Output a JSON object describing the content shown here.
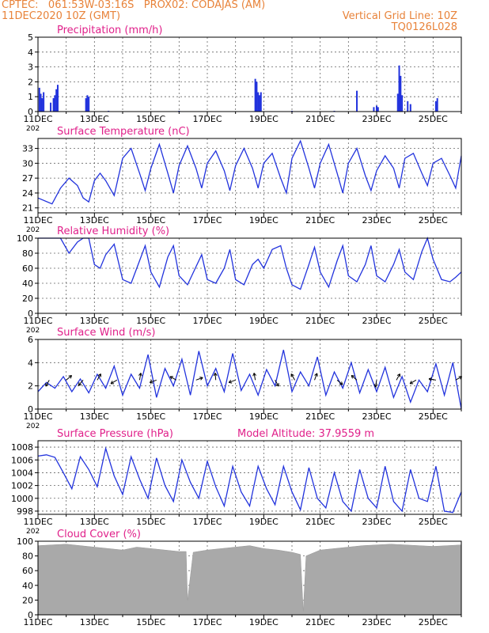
{
  "header": {
    "line1_left": "CPTEC:   061:53W-03:16S   PROX02: CODAJAS (AM)",
    "line2_left": "11DEC2020 10Z (GMT)",
    "line2_right": "Vertical Grid Line: 10Z",
    "line3_right": "TQ0126L028"
  },
  "colors": {
    "header": "#e8833a",
    "title": "#e0208a",
    "line": "#2233dd",
    "cloud": "#a9a9a9"
  },
  "x_ticks": [
    "11DEC",
    "13DEC",
    "15DEC",
    "17DEC",
    "19DEC",
    "21DEC",
    "23DEC",
    "25DEC"
  ],
  "x_corner_label": "202",
  "chart_data": [
    {
      "type": "bar",
      "title": "Precipitation (mm/h)",
      "ylim": [
        0,
        5
      ],
      "yticks": [
        0,
        1,
        2,
        3,
        4,
        5
      ],
      "grid": true,
      "bars": [
        {
          "x": 0.05,
          "y": 1.6
        },
        {
          "x": 0.1,
          "y": 1.2
        },
        {
          "x": 0.15,
          "y": 0.9
        },
        {
          "x": 0.2,
          "y": 1.3
        },
        {
          "x": 0.45,
          "y": 0.6
        },
        {
          "x": 0.55,
          "y": 0.9
        },
        {
          "x": 0.6,
          "y": 1.1
        },
        {
          "x": 0.65,
          "y": 1.5
        },
        {
          "x": 0.7,
          "y": 1.8
        },
        {
          "x": 1.7,
          "y": 0.9
        },
        {
          "x": 1.75,
          "y": 1.1
        },
        {
          "x": 1.8,
          "y": 1.0
        },
        {
          "x": 7.7,
          "y": 2.2
        },
        {
          "x": 7.75,
          "y": 2.0
        },
        {
          "x": 7.8,
          "y": 1.3
        },
        {
          "x": 7.85,
          "y": 1.1
        },
        {
          "x": 7.9,
          "y": 1.3
        },
        {
          "x": 11.3,
          "y": 1.4
        },
        {
          "x": 11.9,
          "y": 0.3
        },
        {
          "x": 12.0,
          "y": 0.4
        },
        {
          "x": 12.05,
          "y": 0.3
        },
        {
          "x": 12.75,
          "y": 1.2
        },
        {
          "x": 12.8,
          "y": 3.1
        },
        {
          "x": 12.85,
          "y": 2.4
        },
        {
          "x": 12.9,
          "y": 1.1
        },
        {
          "x": 13.1,
          "y": 0.7
        },
        {
          "x": 13.2,
          "y": 0.5
        },
        {
          "x": 14.1,
          "y": 0.7
        },
        {
          "x": 14.15,
          "y": 0.9
        },
        {
          "x": 2.5,
          "y": 0.05
        },
        {
          "x": 5.0,
          "y": 0.05
        },
        {
          "x": 9.0,
          "y": 0.05
        },
        {
          "x": 10.5,
          "y": 0.05
        }
      ]
    },
    {
      "type": "line",
      "title": "Surface Temperature (nC)",
      "ylim": [
        20,
        35
      ],
      "yticks": [
        21,
        24,
        27,
        30,
        33
      ],
      "grid": true,
      "x": [
        0,
        0.5,
        0.8,
        1.1,
        1.4,
        1.6,
        1.8,
        2.0,
        2.2,
        2.4,
        2.7,
        3.0,
        3.3,
        3.6,
        3.8,
        4.0,
        4.3,
        4.6,
        4.8,
        5.0,
        5.3,
        5.6,
        5.8,
        6.0,
        6.3,
        6.6,
        6.8,
        7.0,
        7.3,
        7.6,
        7.8,
        8.0,
        8.3,
        8.6,
        8.8,
        9.0,
        9.3,
        9.6,
        9.8,
        10.0,
        10.3,
        10.6,
        10.8,
        11.0,
        11.3,
        11.6,
        11.8,
        12.0,
        12.3,
        12.6,
        12.8,
        13.0,
        13.3,
        13.6,
        13.8,
        14.0,
        14.3,
        14.6,
        14.8,
        15.0
      ],
      "y": [
        23.0,
        21.8,
        25.0,
        27.0,
        25.5,
        23.0,
        22.2,
        26.5,
        28.0,
        26.5,
        23.5,
        31.0,
        33.0,
        28.0,
        24.5,
        29.0,
        33.8,
        28.0,
        24.0,
        29.5,
        33.5,
        29.0,
        25.0,
        30.0,
        32.5,
        28.5,
        24.5,
        29.5,
        33.0,
        29.0,
        25.0,
        30.0,
        32.0,
        27.0,
        24.0,
        31.0,
        34.5,
        29.0,
        25.0,
        30.0,
        33.8,
        28.0,
        24.0,
        30.0,
        33.0,
        27.5,
        24.5,
        28.5,
        31.5,
        29.0,
        25.0,
        31.0,
        32.0,
        28.0,
        25.5,
        30.0,
        31.0,
        27.5,
        25.0,
        31.5
      ]
    },
    {
      "type": "line",
      "title": "Relative Humidity (%)",
      "ylim": [
        0,
        100
      ],
      "yticks": [
        0,
        20,
        40,
        60,
        80,
        100
      ],
      "grid": true,
      "x": [
        0,
        0.5,
        0.8,
        1.1,
        1.4,
        1.6,
        1.8,
        2.0,
        2.2,
        2.4,
        2.7,
        3.0,
        3.3,
        3.6,
        3.8,
        4.0,
        4.3,
        4.6,
        4.8,
        5.0,
        5.3,
        5.6,
        5.8,
        6.0,
        6.3,
        6.6,
        6.8,
        7.0,
        7.3,
        7.6,
        7.8,
        8.0,
        8.3,
        8.6,
        8.8,
        9.0,
        9.3,
        9.6,
        9.8,
        10.0,
        10.3,
        10.6,
        10.8,
        11.0,
        11.3,
        11.6,
        11.8,
        12.0,
        12.3,
        12.6,
        12.8,
        13.0,
        13.3,
        13.6,
        13.8,
        14.0,
        14.3,
        14.6,
        14.8,
        15.0
      ],
      "y": [
        100,
        100,
        100,
        80,
        95,
        100,
        100,
        65,
        60,
        78,
        92,
        45,
        40,
        70,
        90,
        55,
        35,
        75,
        90,
        50,
        38,
        62,
        78,
        45,
        40,
        60,
        85,
        45,
        38,
        65,
        72,
        60,
        85,
        90,
        60,
        38,
        32,
        65,
        88,
        55,
        35,
        70,
        90,
        50,
        42,
        65,
        90,
        50,
        42,
        65,
        85,
        55,
        45,
        82,
        100,
        72,
        45,
        42,
        48,
        55
      ]
    },
    {
      "type": "line",
      "title": "Surface Wind (m/s)",
      "ylim": [
        0,
        6
      ],
      "yticks": [
        0,
        2,
        4,
        6
      ],
      "grid": true,
      "x": [
        0,
        0.3,
        0.6,
        0.9,
        1.2,
        1.5,
        1.8,
        2.1,
        2.4,
        2.7,
        3.0,
        3.3,
        3.6,
        3.9,
        4.2,
        4.5,
        4.8,
        5.1,
        5.4,
        5.7,
        6.0,
        6.3,
        6.6,
        6.9,
        7.2,
        7.5,
        7.8,
        8.1,
        8.4,
        8.7,
        9.0,
        9.3,
        9.6,
        9.9,
        10.2,
        10.5,
        10.8,
        11.1,
        11.4,
        11.7,
        12.0,
        12.3,
        12.6,
        12.9,
        13.2,
        13.5,
        13.8,
        14.1,
        14.4,
        14.7,
        15.0
      ],
      "y": [
        1.5,
        2.3,
        1.8,
        2.8,
        1.5,
        2.6,
        1.4,
        3.0,
        1.8,
        3.7,
        1.2,
        3.0,
        1.8,
        4.7,
        1.0,
        3.5,
        2.0,
        4.3,
        1.2,
        5.0,
        2.0,
        3.5,
        1.5,
        4.8,
        1.6,
        3.0,
        1.2,
        3.4,
        2.0,
        5.1,
        1.5,
        3.2,
        2.0,
        4.5,
        1.2,
        3.2,
        1.8,
        4.0,
        1.4,
        3.4,
        1.5,
        3.6,
        1.0,
        2.8,
        0.6,
        2.5,
        1.5,
        3.9,
        1.2,
        4.0,
        0.0
      ],
      "barbs": [
        {
          "x": 0.4,
          "angle": -120
        },
        {
          "x": 1.0,
          "angle": 40
        },
        {
          "x": 1.6,
          "angle": -130
        },
        {
          "x": 2.1,
          "angle": 60
        },
        {
          "x": 2.8,
          "angle": 210
        },
        {
          "x": 3.6,
          "angle": 80
        },
        {
          "x": 4.2,
          "angle": -160
        },
        {
          "x": 4.9,
          "angle": 150
        },
        {
          "x": 5.6,
          "angle": 20
        },
        {
          "x": 6.3,
          "angle": 95
        },
        {
          "x": 7.0,
          "angle": 200
        },
        {
          "x": 7.7,
          "angle": 100
        },
        {
          "x": 8.4,
          "angle": -60
        },
        {
          "x": 9.1,
          "angle": 120
        },
        {
          "x": 9.8,
          "angle": 70
        },
        {
          "x": 10.6,
          "angle": -40
        },
        {
          "x": 11.3,
          "angle": 140
        },
        {
          "x": 12.0,
          "angle": -100
        },
        {
          "x": 12.7,
          "angle": 60
        },
        {
          "x": 13.4,
          "angle": -150
        },
        {
          "x": 14.1,
          "angle": 170
        },
        {
          "x": 14.8,
          "angle": 30
        }
      ]
    },
    {
      "type": "line",
      "title": "Surface Pressure (hPa)",
      "annotation": "Model Altitude: 37.9559  m",
      "ylim": [
        997.5,
        1009
      ],
      "yticks": [
        998,
        1000,
        1002,
        1004,
        1006,
        1008
      ],
      "grid": true,
      "x": [
        0,
        0.3,
        0.6,
        0.9,
        1.2,
        1.5,
        1.8,
        2.1,
        2.4,
        2.7,
        3.0,
        3.3,
        3.6,
        3.9,
        4.2,
        4.5,
        4.8,
        5.1,
        5.4,
        5.7,
        6.0,
        6.3,
        6.6,
        6.9,
        7.2,
        7.5,
        7.8,
        8.1,
        8.4,
        8.7,
        9.0,
        9.3,
        9.6,
        9.9,
        10.2,
        10.5,
        10.8,
        11.1,
        11.4,
        11.7,
        12.0,
        12.3,
        12.6,
        12.9,
        13.2,
        13.5,
        13.8,
        14.1,
        14.4,
        14.7,
        15.0
      ],
      "y": [
        1006.6,
        1006.8,
        1006.4,
        1004.0,
        1001.5,
        1006.5,
        1004.5,
        1001.8,
        1007.8,
        1003.5,
        1000.6,
        1006.5,
        1003.0,
        1000.0,
        1006.3,
        1002.0,
        999.5,
        1006.0,
        1002.5,
        1000.0,
        1005.8,
        1001.8,
        998.8,
        1005.0,
        1001.0,
        998.8,
        1005.0,
        1001.5,
        999.0,
        1005.0,
        1001.0,
        998.2,
        1004.8,
        1000.0,
        998.5,
        1004.0,
        999.5,
        998.0,
        1004.5,
        1000.0,
        998.5,
        1005.0,
        999.5,
        998.0,
        1004.5,
        1000.0,
        999.5,
        1005.0,
        998.0,
        997.8,
        1001.0
      ]
    },
    {
      "type": "area",
      "title": "Cloud Cover (%)",
      "ylim": [
        0,
        100
      ],
      "yticks": [
        0,
        20,
        40,
        60,
        80,
        100
      ],
      "grid": true,
      "x": [
        0,
        0.5,
        1.0,
        1.5,
        2.0,
        2.5,
        3.0,
        3.5,
        4.0,
        4.5,
        5.0,
        5.25,
        5.3,
        5.5,
        6.0,
        6.5,
        7.0,
        7.5,
        8.0,
        8.5,
        9.0,
        9.3,
        9.4,
        9.5,
        10.0,
        10.5,
        11.0,
        11.5,
        12.0,
        12.5,
        13.0,
        13.5,
        14.0,
        14.5,
        15.0
      ],
      "y": [
        94,
        95,
        96,
        94,
        92,
        90,
        88,
        92,
        90,
        88,
        86,
        86,
        20,
        85,
        88,
        90,
        92,
        94,
        90,
        88,
        85,
        82,
        5,
        80,
        88,
        90,
        92,
        94,
        95,
        96,
        95,
        94,
        93,
        94,
        95
      ]
    }
  ]
}
